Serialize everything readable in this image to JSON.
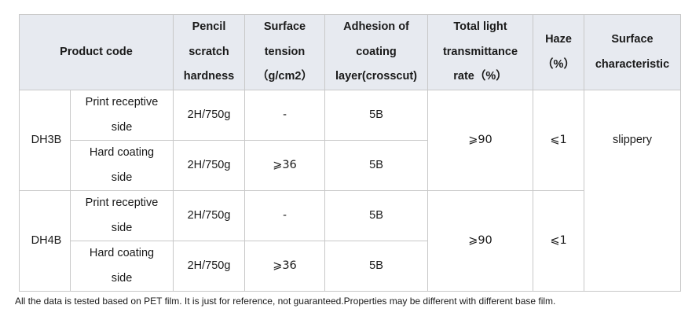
{
  "headers": {
    "product_code": "Product code",
    "pencil": [
      "Pencil",
      "scratch",
      "hardness"
    ],
    "surface_tension": [
      "Surface",
      "tension",
      "（g/cm2）"
    ],
    "adhesion": [
      "Adhesion of",
      "coating",
      "layer(crosscut)"
    ],
    "transmittance": [
      "Total light",
      "transmittance",
      "rate（%）"
    ],
    "haze": [
      "Haze",
      "（%）"
    ],
    "surface_characteristic": [
      "Surface",
      "characteristic"
    ]
  },
  "products": [
    {
      "code": "DH3B",
      "rows": [
        {
          "side": [
            "Print receptive",
            "side"
          ],
          "pencil": "2H/750g",
          "tension": "-",
          "adhesion": "5B"
        },
        {
          "side": [
            "Hard coating",
            "side"
          ],
          "pencil": "2H/750g",
          "tension": "⩾36",
          "adhesion": "5B"
        }
      ],
      "transmittance": "⩾90",
      "haze": "⩽1",
      "surface_characteristic": "slippery"
    },
    {
      "code": "DH4B",
      "rows": [
        {
          "side": [
            "Print receptive",
            "side"
          ],
          "pencil": "2H/750g",
          "tension": "-",
          "adhesion": "5B"
        },
        {
          "side": [
            "Hard coating",
            "side"
          ],
          "pencil": "2H/750g",
          "tension": "⩾36",
          "adhesion": "5B"
        }
      ],
      "transmittance": "⩾90",
      "haze": "⩽1",
      "surface_characteristic": ""
    }
  ],
  "footnote": "All the data is tested based on PET film. It is just for reference, not guaranteed.Properties may be different with different base film."
}
